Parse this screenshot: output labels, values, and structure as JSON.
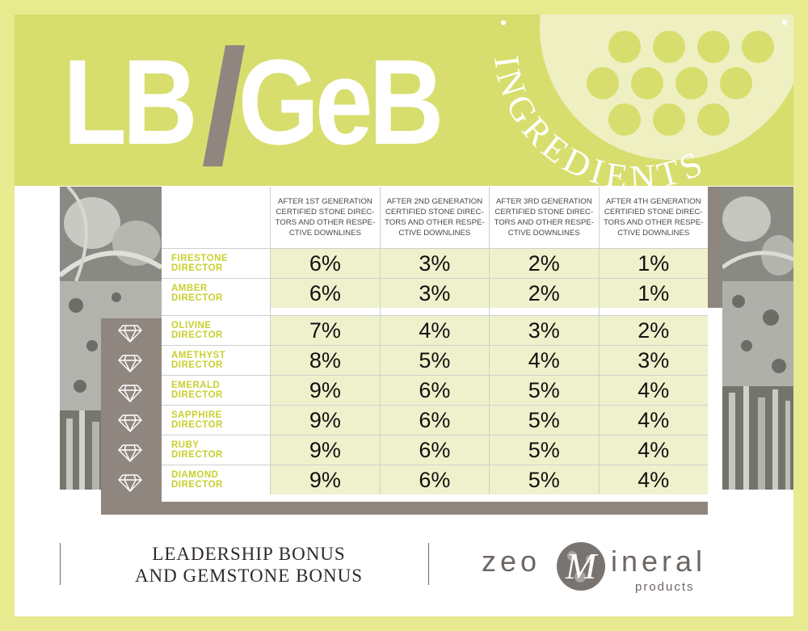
{
  "banner": {
    "title_left": "LB",
    "title_right": "GeB",
    "badge_text": "INGREDIENTS"
  },
  "table": {
    "headers": [
      "AFTER 1ST GENERATION CERTIFIED STONE DIREC-TORS AND OTHER RESPE-CTIVE DOWNLINES",
      "AFTER 2ND GENERATION CERTIFIED STONE DIREC-TORS AND OTHER RESPE-CTIVE DOWNLINES",
      "AFTER 3RD GENERATION CERTIFIED STONE DIREC-TORS AND OTHER RESPE-CTIVE DOWNLINES",
      "AFTER 4TH GENERATION CERTIFIED STONE DIREC-TORS AND OTHER RESPE-CTIVE DOWNLINES"
    ],
    "upper_rows": [
      {
        "name1": "FIRESTONE",
        "name2": "DIRECTOR",
        "values": [
          "6%",
          "3%",
          "2%",
          "1%"
        ]
      },
      {
        "name1": "AMBER",
        "name2": "DIRECTOR",
        "values": [
          "6%",
          "3%",
          "2%",
          "1%"
        ]
      }
    ],
    "lower_rows": [
      {
        "name1": "OLIVINE",
        "name2": "DIRECTOR",
        "values": [
          "7%",
          "4%",
          "3%",
          "2%"
        ]
      },
      {
        "name1": "AMETHYST",
        "name2": "DIRECTOR",
        "values": [
          "8%",
          "5%",
          "4%",
          "3%"
        ]
      },
      {
        "name1": "EMERALD",
        "name2": "DIRECTOR",
        "values": [
          "9%",
          "6%",
          "5%",
          "4%"
        ]
      },
      {
        "name1": "SAPPHIRE",
        "name2": "DIRECTOR",
        "values": [
          "9%",
          "6%",
          "5%",
          "4%"
        ]
      },
      {
        "name1": "RUBY",
        "name2": "DIRECTOR",
        "values": [
          "9%",
          "6%",
          "5%",
          "4%"
        ]
      },
      {
        "name1": "DIAMOND",
        "name2": "DIRECTOR",
        "values": [
          "9%",
          "6%",
          "5%",
          "4%"
        ]
      }
    ]
  },
  "footer": {
    "line1": "LEADERSHIP BONUS",
    "line2": "AND GEMSTONE BONUS",
    "logo_left": "zeo",
    "logo_right": "ineral",
    "logo_sub": "products"
  },
  "colors": {
    "lime": "#d7de6d",
    "lime_text": "#c8d02f",
    "cell_bg": "#eff1cc",
    "taupe": "#8f8680"
  }
}
